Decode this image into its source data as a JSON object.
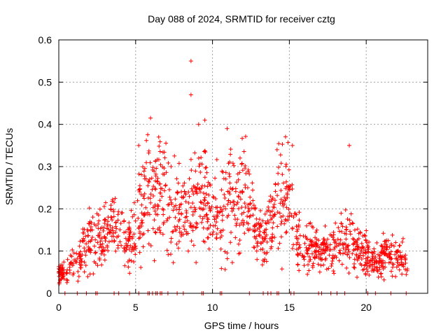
{
  "chart_data": {
    "type": "scatter",
    "title": "Day 088 of 2024, SRMTID for receiver cztg",
    "xlabel": "GPS time / hours",
    "ylabel": "SRMTID / TECUs",
    "xlim": [
      0,
      24
    ],
    "ylim": [
      0,
      0.6
    ],
    "xticks": [
      0,
      5,
      10,
      15,
      20
    ],
    "yticks": [
      0,
      0.1,
      0.2,
      0.3,
      0.4,
      0.5,
      0.6
    ],
    "xtick_labels": [
      "0",
      "5",
      "10",
      "15",
      "20"
    ],
    "ytick_labels": [
      "0",
      "0.1",
      "0.2",
      "0.3",
      "0.4",
      "0.5",
      "0.6"
    ],
    "grid": true,
    "marker": "+",
    "color": "#ff0000",
    "time_range": [
      0,
      22.7
    ],
    "series": [
      {
        "name": "SRMTID",
        "profile": [
          [
            0.0,
            0.05
          ],
          [
            0.5,
            0.05
          ],
          [
            1.0,
            0.07
          ],
          [
            1.5,
            0.09
          ],
          [
            2.0,
            0.13
          ],
          [
            2.5,
            0.12
          ],
          [
            3.0,
            0.13
          ],
          [
            3.5,
            0.17
          ],
          [
            4.0,
            0.12
          ],
          [
            4.5,
            0.11
          ],
          [
            5.0,
            0.16
          ],
          [
            5.5,
            0.23
          ],
          [
            6.0,
            0.24
          ],
          [
            6.5,
            0.25
          ],
          [
            7.0,
            0.22
          ],
          [
            7.5,
            0.19
          ],
          [
            8.0,
            0.18
          ],
          [
            8.5,
            0.19
          ],
          [
            9.0,
            0.21
          ],
          [
            9.5,
            0.24
          ],
          [
            10.0,
            0.2
          ],
          [
            10.5,
            0.18
          ],
          [
            11.0,
            0.22
          ],
          [
            11.5,
            0.2
          ],
          [
            12.0,
            0.25
          ],
          [
            12.5,
            0.21
          ],
          [
            13.0,
            0.14
          ],
          [
            13.5,
            0.13
          ],
          [
            14.0,
            0.18
          ],
          [
            14.5,
            0.24
          ],
          [
            15.0,
            0.22
          ],
          [
            15.5,
            0.12
          ],
          [
            16.0,
            0.11
          ],
          [
            16.5,
            0.1
          ],
          [
            17.0,
            0.09
          ],
          [
            17.5,
            0.1
          ],
          [
            18.0,
            0.11
          ],
          [
            18.5,
            0.13
          ],
          [
            19.0,
            0.12
          ],
          [
            19.5,
            0.1
          ],
          [
            20.0,
            0.09
          ],
          [
            20.5,
            0.07
          ],
          [
            21.0,
            0.08
          ],
          [
            21.5,
            0.09
          ],
          [
            22.0,
            0.09
          ],
          [
            22.5,
            0.08
          ],
          [
            22.7,
            0.08
          ]
        ],
        "outliers": [
          [
            8.6,
            0.55
          ],
          [
            8.6,
            0.47
          ],
          [
            9.1,
            0.4
          ],
          [
            9.5,
            0.41
          ],
          [
            10.95,
            0.39
          ],
          [
            15.2,
            0.35
          ],
          [
            18.9,
            0.35
          ],
          [
            5.2,
            0.35
          ],
          [
            6.5,
            0.37
          ],
          [
            14.2,
            0.34
          ]
        ],
        "baseline_hits": [
          0.4,
          1.2,
          1.8,
          2.4,
          2.5,
          3.6,
          3.9,
          4.6,
          5.2,
          5.8,
          5.9,
          6.1,
          6.3,
          6.4,
          6.6,
          6.7,
          7.1,
          7.7,
          8.1,
          9.3,
          9.4,
          10.5,
          10.6,
          12.4,
          13.3,
          13.6,
          13.8,
          14.2,
          14.3,
          15.1,
          15.3,
          16.9,
          17.1,
          17.7,
          18.1,
          18.6,
          20.1,
          20.6,
          21.6,
          22.6
        ]
      }
    ]
  }
}
